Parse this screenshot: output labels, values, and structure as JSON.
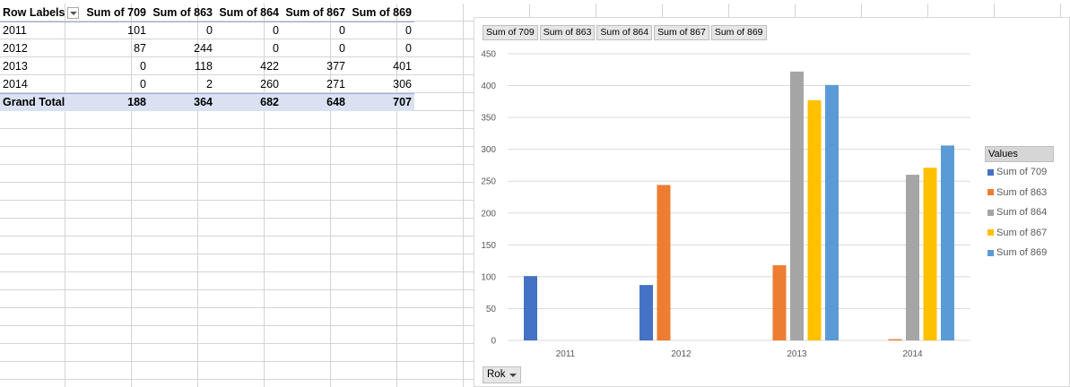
{
  "pivot": {
    "row_labels_header": "Row Labels",
    "columns": [
      "Sum of 709",
      "Sum of 863",
      "Sum of 864",
      "Sum of 867",
      "Sum of 869"
    ],
    "rows": [
      {
        "label": "2011",
        "values": [
          "101",
          "0",
          "0",
          "0",
          "0"
        ]
      },
      {
        "label": "2012",
        "values": [
          "87",
          "244",
          "0",
          "0",
          "0"
        ]
      },
      {
        "label": "2013",
        "values": [
          "0",
          "118",
          "422",
          "377",
          "401"
        ]
      },
      {
        "label": "2014",
        "values": [
          "0",
          "2",
          "260",
          "271",
          "306"
        ]
      }
    ],
    "grand_total": {
      "label": "Grand Total",
      "values": [
        "188",
        "364",
        "682",
        "648",
        "707"
      ]
    }
  },
  "chart_field_buttons": [
    "Sum of 709",
    "Sum of 863",
    "Sum of 864",
    "Sum of 867",
    "Sum of 869"
  ],
  "axis_field_button": "Rok",
  "legend_title": "Values",
  "chart_data": {
    "type": "bar",
    "categories": [
      "2011",
      "2012",
      "2013",
      "2014"
    ],
    "series": [
      {
        "name": "Sum of 709",
        "values": [
          101,
          87,
          0,
          0
        ],
        "color": "#4472c4"
      },
      {
        "name": "Sum of 863",
        "values": [
          0,
          244,
          118,
          2
        ],
        "color": "#ed7d31"
      },
      {
        "name": "Sum of 864",
        "values": [
          0,
          0,
          422,
          260
        ],
        "color": "#a5a5a5"
      },
      {
        "name": "Sum of 867",
        "values": [
          0,
          0,
          377,
          271
        ],
        "color": "#ffc000"
      },
      {
        "name": "Sum of 869",
        "values": [
          0,
          0,
          401,
          306
        ],
        "color": "#5b9bd5"
      }
    ],
    "ylim": [
      0,
      450
    ],
    "yticks": [
      0,
      50,
      100,
      150,
      200,
      250,
      300,
      350,
      400,
      450
    ],
    "grid": true,
    "legend": "right"
  }
}
